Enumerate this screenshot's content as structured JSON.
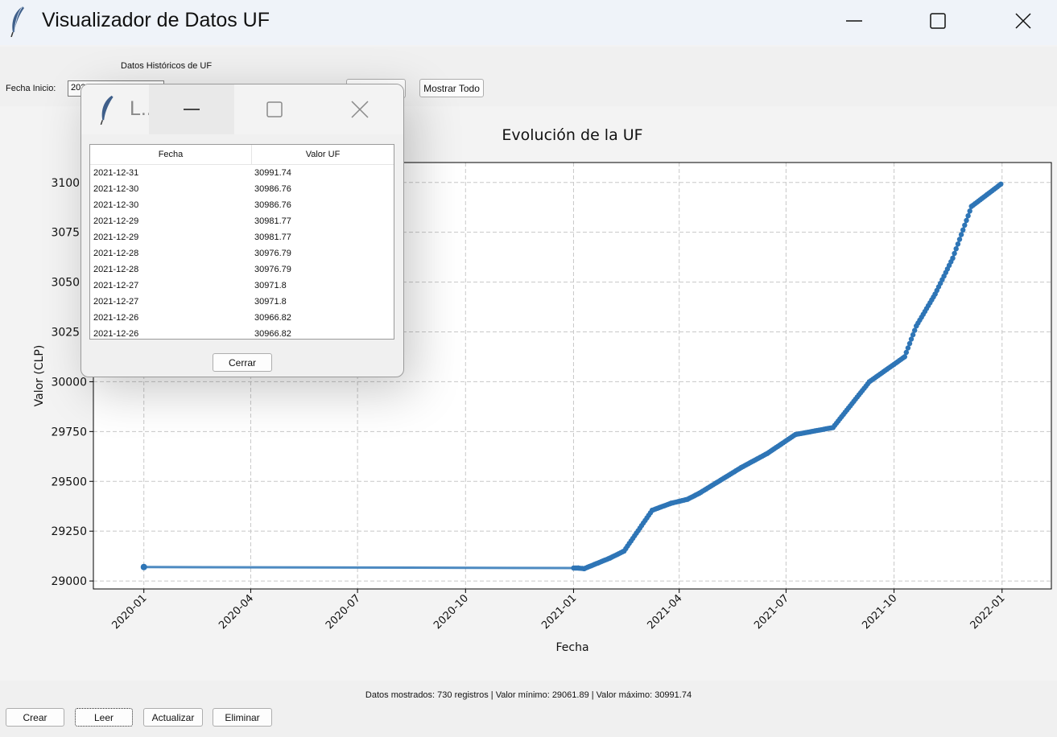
{
  "window": {
    "title": "Visualizador de Datos UF"
  },
  "toolbar": {
    "section_label": "Datos Históricos de UF",
    "start_label": "Fecha Inicio:",
    "start_value": "2020",
    "show_all_label": "Mostrar Todo"
  },
  "chart_data": {
    "type": "line",
    "title": "Evolución de la UF",
    "xlabel": "Fecha",
    "ylabel": "Valor (CLP)",
    "x_ticks": [
      "2020-01",
      "2020-04",
      "2020-07",
      "2020-10",
      "2021-01",
      "2021-04",
      "2021-07",
      "2021-10",
      "2022-01"
    ],
    "y_ticks": [
      29000,
      29250,
      29500,
      29750,
      30000,
      30250,
      30500,
      30750,
      31000
    ],
    "ylim": [
      28960,
      31100
    ],
    "xlim": [
      "2019-11-19",
      "2022-02-12"
    ],
    "grid": true,
    "series": [
      {
        "color": "#2e75b6",
        "points": [
          [
            "2020-01-01",
            29070
          ],
          [
            "2021-01-01",
            29065
          ],
          [
            "2021-01-05",
            29065
          ],
          [
            "2021-01-10",
            29061.89
          ],
          [
            "2021-02-01",
            29115
          ],
          [
            "2021-02-13",
            29150
          ],
          [
            "2021-03-09",
            29355
          ],
          [
            "2021-03-25",
            29390
          ],
          [
            "2021-04-08",
            29410
          ],
          [
            "2021-04-18",
            29440
          ],
          [
            "2021-05-24",
            29570
          ],
          [
            "2021-06-15",
            29640
          ],
          [
            "2021-07-09",
            29735
          ],
          [
            "2021-08-10",
            29770
          ],
          [
            "2021-09-10",
            30000
          ],
          [
            "2021-10-10",
            30125
          ],
          [
            "2021-10-20",
            30280
          ],
          [
            "2021-11-05",
            30440
          ],
          [
            "2021-11-20",
            30620
          ],
          [
            "2021-12-06",
            30880
          ],
          [
            "2021-12-31",
            30991.74
          ]
        ]
      }
    ]
  },
  "status": {
    "info": "Datos mostrados: 730 registros | Valor mínimo: 29061.89 | Valor máximo: 30991.74",
    "buttons": [
      "Crear",
      "Leer",
      "Actualizar",
      "Eliminar"
    ]
  },
  "popup": {
    "title": "L...",
    "columns": [
      "Fecha",
      "Valor UF"
    ],
    "rows": [
      [
        "2021-12-31",
        "30991.74"
      ],
      [
        "2021-12-30",
        "30986.76"
      ],
      [
        "2021-12-30",
        "30986.76"
      ],
      [
        "2021-12-29",
        "30981.77"
      ],
      [
        "2021-12-29",
        "30981.77"
      ],
      [
        "2021-12-28",
        "30976.79"
      ],
      [
        "2021-12-28",
        "30976.79"
      ],
      [
        "2021-12-27",
        "30971.8"
      ],
      [
        "2021-12-27",
        "30971.8"
      ],
      [
        "2021-12-26",
        "30966.82"
      ],
      [
        "2021-12-26",
        "30966.82"
      ]
    ],
    "close_label": "Cerrar"
  }
}
